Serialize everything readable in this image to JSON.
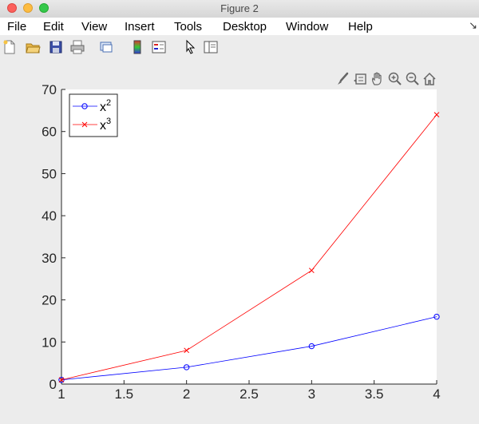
{
  "window": {
    "title": "Figure 2"
  },
  "menu": [
    "File",
    "Edit",
    "View",
    "Insert",
    "Tools",
    "Desktop",
    "Window",
    "Help"
  ],
  "toolbar_icons": [
    "new-figure-icon",
    "open-file-icon",
    "save-icon",
    "print-icon",
    "link-plot-icon",
    "colorbar-icon",
    "legend-icon",
    "pointer-icon",
    "property-inspector-icon"
  ],
  "axes_toolbar_icons": [
    "brush-icon",
    "data-tips-icon",
    "pan-icon",
    "zoom-in-icon",
    "zoom-out-icon",
    "home-icon"
  ],
  "chart_data": {
    "type": "line",
    "x": [
      1,
      2,
      3,
      4
    ],
    "series": [
      {
        "name": "x²",
        "label_base": "x",
        "label_sup": "2",
        "values": [
          1,
          4,
          9,
          16
        ],
        "color": "#0000ff",
        "marker": "circle"
      },
      {
        "name": "x³",
        "label_base": "x",
        "label_sup": "3",
        "values": [
          1,
          8,
          27,
          64
        ],
        "color": "#ff0000",
        "marker": "x"
      }
    ],
    "xlim": [
      1,
      4
    ],
    "ylim": [
      0,
      70
    ],
    "xticks": [
      "1",
      "1.5",
      "2",
      "2.5",
      "3",
      "3.5",
      "4"
    ],
    "yticks": [
      "0",
      "10",
      "20",
      "30",
      "40",
      "50",
      "60",
      "70"
    ],
    "xtick_values": [
      1,
      1.5,
      2,
      2.5,
      3,
      3.5,
      4
    ],
    "ytick_values": [
      0,
      10,
      20,
      30,
      40,
      50,
      60,
      70
    ],
    "legend": "top-left",
    "grid": false,
    "box": false
  }
}
